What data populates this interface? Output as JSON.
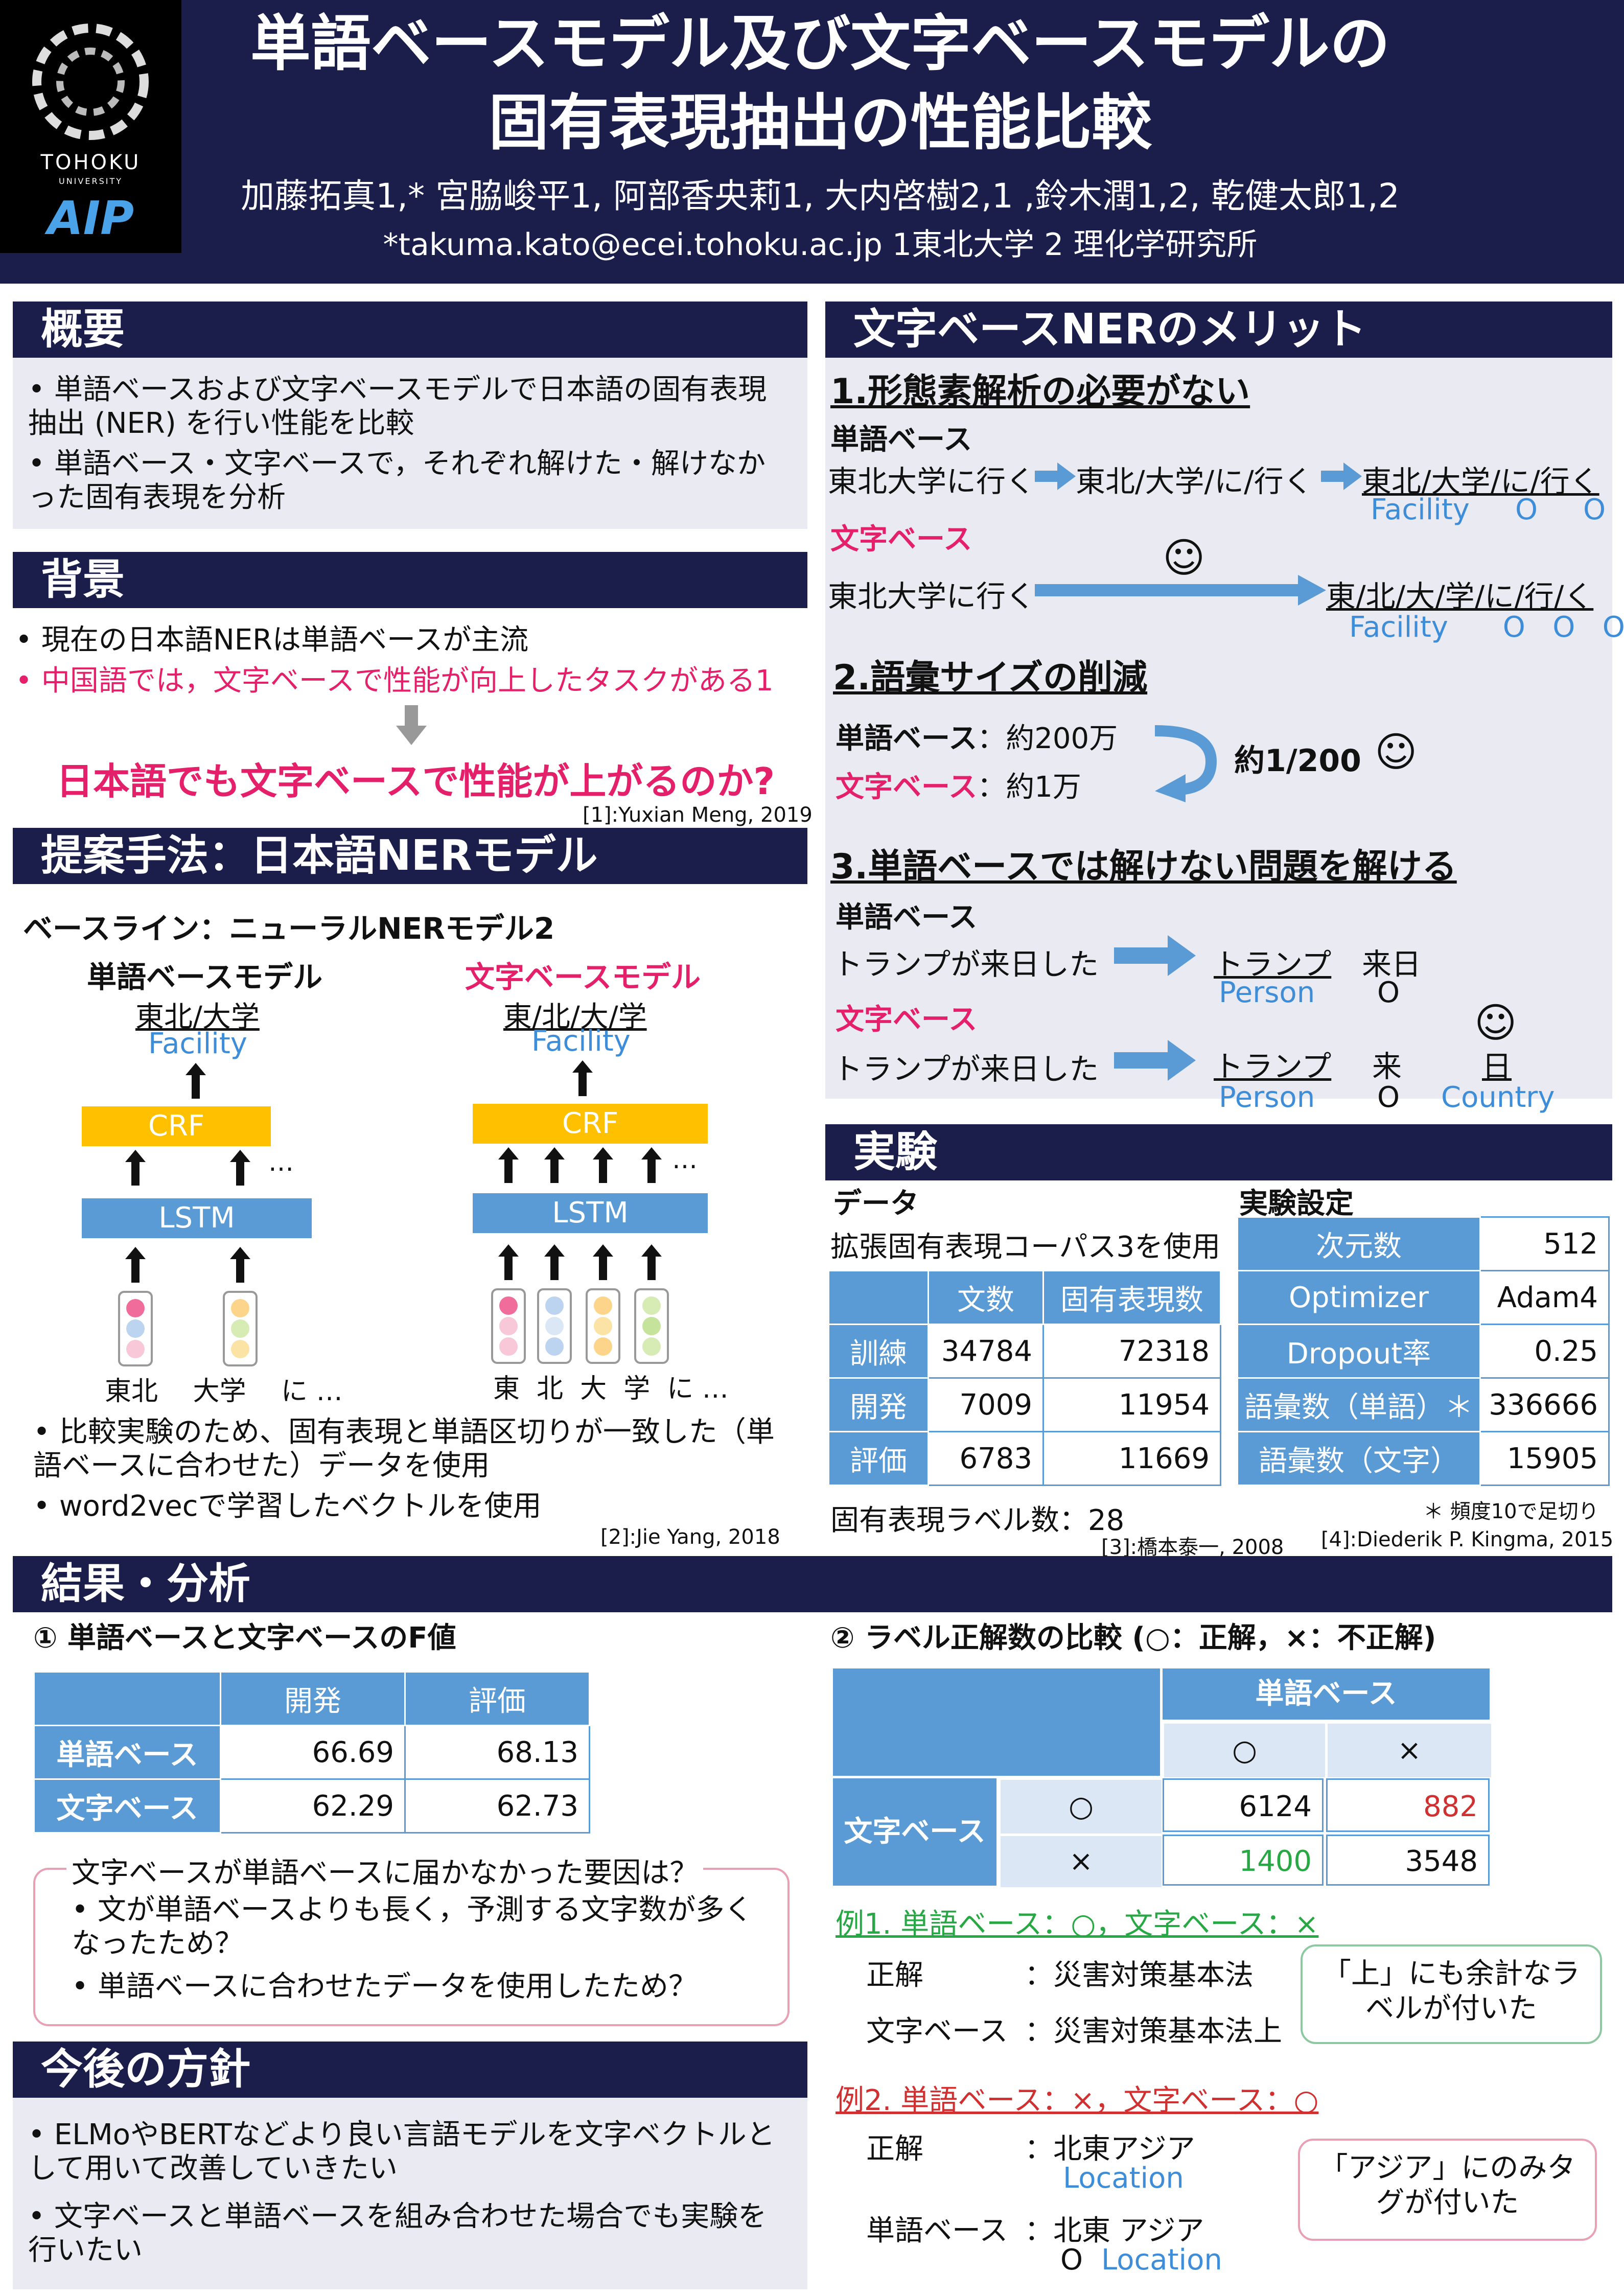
{
  "header": {
    "title_line1": "単語ベースモデル及び文字ベースモデルの",
    "title_line2": "固有表現抽出の性能比較",
    "authors": "加藤拓真1,* 宮脇峻平1, 阿部香央莉1, 大内啓樹2,1 ,鈴木潤1,2, 乾健太郎1,2",
    "affiliations": "*takuma.kato@ecei.tohoku.ac.jp  1東北大学   2 理化学研究所",
    "logo_text": "TOHOKU",
    "logo_sub": "UNIVERSITY",
    "logo_aip": "AIP"
  },
  "overview": {
    "title": "概要",
    "items": [
      "単語ベースおよび文字ベースモデルで日本語の固有表現抽出 (NER) を行い性能を比較",
      "単語ベース・文字ベースで，それぞれ解けた・解けなかった固有表現を分析"
    ]
  },
  "background": {
    "title": "背景",
    "item1": "現在の日本語NERは単語ベースが主流",
    "item2": "中国語では，文字ベースで性能が向上したタスクがある1",
    "question": "日本語でも文字ベースで性能が上がるのか?",
    "ref": "[1]:Yuxian Meng, 2019"
  },
  "method": {
    "title": "提案手法：日本語NERモデル",
    "baseline": "ベースライン：ニューラルNERモデル2",
    "word_model": "単語ベースモデル",
    "char_model": "文字ベースモデル",
    "word_output": "東北/大学",
    "char_output": "東/北/大/学",
    "facility": "Facility",
    "crf": "CRF",
    "lstm": "LSTM",
    "dots": "…",
    "word_tokens": "東北　 大学　 に …",
    "char_tokens": "東  北  大  学  に …",
    "bullets": [
      "比較実験のため、固有表現と単語区切りが一致した（単語ベースに合わせた）データを使用",
      "word2vecで学習したベクトルを使用"
    ],
    "ref": "[2]:Jie Yang, 2018"
  },
  "merit": {
    "title": "文字ベースNERのメリット",
    "h1": "1.形態素解析の必要がない",
    "word_label": "単語ベース",
    "char_label": "文字ベース",
    "m1_word_in": "東北大学に行く",
    "m1_word_mid": "東北/大学/に/行く",
    "m1_word_out": "東北/大学/に/行く",
    "m1_word_tags": "Facility     O     O",
    "m1_char_in": "東北大学に行く",
    "m1_char_out": "東/北/大/学/に/行/く",
    "m1_char_tags": "Facility      O   O   O",
    "smile": "☺",
    "h2": "2.語彙サイズの削減",
    "v_word": "単語ベース",
    "v_word_val": "：約200万",
    "v_char": "文字ベース",
    "v_char_val": "：約1万",
    "ratio": "約1/200",
    "h3": "3.単語ベースでは解けない問題を解ける",
    "sentence": "トランプが来日した",
    "w_out1": "トランプ",
    "w_out2": "来日",
    "w_tag1": "Person",
    "w_tag2": "O",
    "c_out1": "トランプ",
    "c_out2": "来",
    "c_out3": "日",
    "c_tag1": "Person",
    "c_tag2": "O",
    "c_tag3": "Country"
  },
  "experiment": {
    "title": "実験",
    "data_label": "データ",
    "settings_label": "実験設定",
    "corpus": "拡張固有表現コーパス3を使用",
    "data_headers": [
      "",
      "文数",
      "固有表現数"
    ],
    "data_rows": [
      [
        "訓練",
        "34784",
        "72318"
      ],
      [
        "開発",
        "7009",
        "11954"
      ],
      [
        "評価",
        "6783",
        "11669"
      ]
    ],
    "label_count": "固有表現ラベル数：28",
    "settings": [
      [
        "次元数",
        "512"
      ],
      [
        "Optimizer",
        "Adam4"
      ],
      [
        "Dropout率",
        "0.25"
      ],
      [
        "語彙数（単語）＊",
        "336666"
      ],
      [
        "語彙数（文字）",
        "15905"
      ]
    ],
    "note": "＊ 頻度10で足切り",
    "ref3": "[3]:橋本泰一, 2008",
    "ref4": "[4]:Diederik P. Kingma, 2015"
  },
  "results": {
    "title": "結果・分析",
    "sub1": "① 単語ベースと文字ベースのF値",
    "f_headers": [
      "",
      "開発",
      "評価"
    ],
    "f_rows": [
      [
        "単語ベース",
        "66.69",
        "68.13"
      ],
      [
        "文字ベース",
        "62.29",
        "62.73"
      ]
    ],
    "why_title": "文字ベースが単語ベースに届かなかった要因は？",
    "why_items": [
      "文が単語ベースよりも長く，予測する文字数が多くなったため？",
      "単語ベースに合わせたデータを使用したため？"
    ],
    "sub2": "② ラベル正解数の比較 (○：正解，×：不正解)",
    "cm_word": "単語ベース",
    "cm_char": "文字ベース",
    "cm_o": "○",
    "cm_x": "×",
    "cm_values": [
      "6124",
      "882",
      "1400",
      "3548"
    ],
    "ex1_title": "例1. 単語ベース：○，文字ベース：×",
    "ex1_gold_label": "正解",
    "ex1_gold": "：災害対策基本法",
    "ex1_char_label": "文字ベース",
    "ex1_char": "：災害対策基本法上",
    "ex1_note": "「上」にも余計なラベルが付いた",
    "ex2_title": "例2. 単語ベース：×，文字ベース：○",
    "ex2_gold_label": "正解",
    "ex2_gold": "：北東アジア",
    "ex2_gold_tag": "Location",
    "ex2_word_label": "単語ベース",
    "ex2_word": "：北東 アジア",
    "ex2_word_tag_o": "O",
    "ex2_word_tag": "Location",
    "ex2_note": "「アジア」にのみタグが付いた"
  },
  "future": {
    "title": "今後の方針",
    "items": [
      "ELMoやBERTなどより良い言語モデルを文字ベクトルとして用いて改善していきたい",
      "文字ベースと単語ベースを組み合わせた場合でも実験を行いたい"
    ]
  },
  "colors": {
    "navy": "#1b1e4a",
    "pink": "#e5206b",
    "blue": "#5b9bd5",
    "green": "#27a844",
    "red": "#d03030",
    "crf": "#ffc000"
  }
}
